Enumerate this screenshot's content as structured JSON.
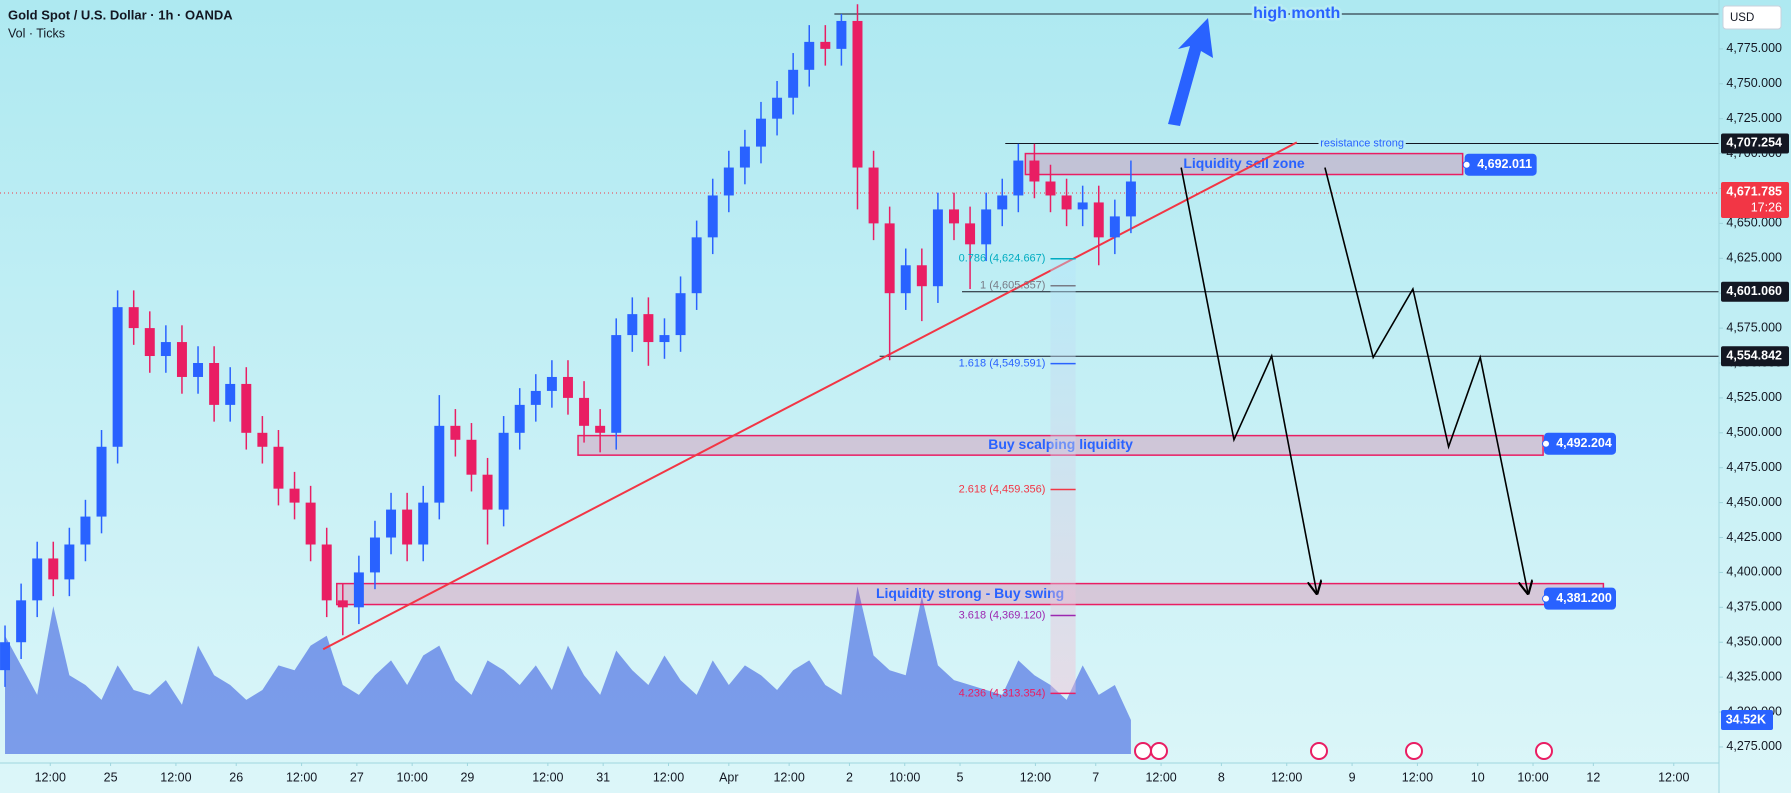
{
  "chart_data": {
    "type": "candlestick",
    "title": "Gold Spot / U.S. Dollar · 1h · OANDA",
    "subtitle": "Vol · Ticks",
    "currency": "USD",
    "up_color": "#2962ff",
    "down_color": "#e91e63",
    "x": [
      1,
      4.2,
      7.4,
      10.6,
      13.8,
      17,
      20.2,
      23.4,
      26.6,
      29.8,
      33,
      36.2,
      39.4,
      42.6,
      45.8,
      49,
      52.2,
      55.4,
      58.6,
      61.8,
      65,
      68.2,
      71.4,
      74.6,
      77.8,
      81,
      84.2,
      87.4,
      90.6,
      93.8,
      97,
      100.2,
      103.4,
      106.6,
      109.8,
      113,
      116.2,
      119.4,
      122.6,
      125.8,
      129,
      132.2,
      135.4,
      138.6,
      141.8,
      145,
      148.2,
      151.4,
      154.6,
      157.8,
      161,
      164.2,
      167.4,
      170.6,
      173.8,
      177,
      180.2,
      183.4,
      186.6,
      189.8,
      193,
      196.2,
      199.4,
      202.6,
      205.8,
      209,
      212.2,
      215.4,
      218.6,
      221.8,
      225
    ],
    "open": [
      4330,
      4350,
      4380,
      4410,
      4395,
      4420,
      4440,
      4490,
      4590,
      4575,
      4555,
      4565,
      4540,
      4550,
      4520,
      4535,
      4500,
      4490,
      4460,
      4450,
      4420,
      4380,
      4375,
      4400,
      4425,
      4445,
      4420,
      4450,
      4505,
      4495,
      4470,
      4445,
      4500,
      4520,
      4530,
      4540,
      4525,
      4505,
      4500,
      4570,
      4585,
      4565,
      4570,
      4600,
      4640,
      4670,
      4690,
      4705,
      4725,
      4740,
      4760,
      4780,
      4775,
      4795,
      4690,
      4650,
      4600,
      4620,
      4605,
      4660,
      4650,
      4635,
      4660,
      4670,
      4695,
      4680,
      4670,
      4660,
      4665,
      4640,
      4655
    ],
    "high": [
      4362,
      4392,
      4422,
      4422,
      4432,
      4452,
      4502,
      4602,
      4602,
      4587,
      4577,
      4577,
      4562,
      4562,
      4547,
      4547,
      4512,
      4502,
      4472,
      4462,
      4432,
      4392,
      4412,
      4437,
      4457,
      4457,
      4462,
      4527,
      4517,
      4507,
      4482,
      4512,
      4532,
      4542,
      4552,
      4552,
      4537,
      4517,
      4582,
      4597,
      4597,
      4582,
      4612,
      4652,
      4682,
      4702,
      4717,
      4737,
      4752,
      4772,
      4792,
      4792,
      4800,
      4807,
      4702,
      4662,
      4632,
      4632,
      4672,
      4672,
      4662,
      4672,
      4682,
      4707,
      4707,
      4692,
      4682,
      4677,
      4677,
      4667,
      4695
    ],
    "low": [
      4318,
      4338,
      4368,
      4383,
      4383,
      4408,
      4428,
      4478,
      4563,
      4543,
      4543,
      4528,
      4528,
      4508,
      4508,
      4488,
      4478,
      4448,
      4438,
      4408,
      4368,
      4355,
      4363,
      4388,
      4413,
      4408,
      4408,
      4438,
      4483,
      4458,
      4420,
      4433,
      4488,
      4508,
      4518,
      4513,
      4493,
      4486,
      4488,
      4558,
      4548,
      4553,
      4558,
      4588,
      4628,
      4658,
      4678,
      4693,
      4713,
      4728,
      4748,
      4763,
      4763,
      4660,
      4638,
      4552,
      4588,
      4580,
      4593,
      4638,
      4603,
      4623,
      4648,
      4658,
      4668,
      4658,
      4648,
      4648,
      4620,
      4628,
      4643
    ],
    "close": [
      4350,
      4380,
      4410,
      4395,
      4420,
      4440,
      4490,
      4590,
      4575,
      4555,
      4565,
      4540,
      4550,
      4520,
      4535,
      4500,
      4490,
      4460,
      4450,
      4420,
      4380,
      4375,
      4400,
      4425,
      4445,
      4420,
      4450,
      4505,
      4495,
      4470,
      4445,
      4500,
      4520,
      4530,
      4540,
      4525,
      4505,
      4500,
      4570,
      4585,
      4565,
      4570,
      4600,
      4640,
      4670,
      4690,
      4705,
      4725,
      4740,
      4760,
      4780,
      4775,
      4795,
      4690,
      4650,
      4600,
      4620,
      4605,
      4660,
      4650,
      4635,
      4660,
      4670,
      4695,
      4680,
      4670,
      4660,
      4665,
      4640,
      4655,
      4680
    ],
    "volume_values": [
      120,
      90,
      60,
      150,
      80,
      70,
      55,
      90,
      65,
      60,
      75,
      50,
      110,
      80,
      70,
      55,
      65,
      90,
      85,
      110,
      120,
      70,
      60,
      80,
      95,
      70,
      100,
      110,
      75,
      60,
      95,
      85,
      70,
      90,
      65,
      110,
      80,
      60,
      105,
      85,
      70,
      100,
      75,
      60,
      95,
      70,
      90,
      80,
      65,
      85,
      95,
      70,
      60,
      170,
      100,
      85,
      80,
      160,
      90,
      75,
      70,
      65,
      60,
      95,
      80,
      70,
      55,
      90,
      60,
      70,
      34.52
    ],
    "volume_label": "34.52K",
    "volume_color": "#5b7ee5",
    "volume_lim": [
      0,
      200
    ],
    "xlim": [
      0,
      342
    ],
    "xticks": [
      {
        "value": 10,
        "label": "12:00"
      },
      {
        "value": 22,
        "label": "25"
      },
      {
        "value": 35,
        "label": "12:00"
      },
      {
        "value": 47,
        "label": "26"
      },
      {
        "value": 60,
        "label": "12:00"
      },
      {
        "value": 71,
        "label": "27"
      },
      {
        "value": 82,
        "label": "10:00"
      },
      {
        "value": 93,
        "label": "29"
      },
      {
        "value": 109,
        "label": "12:00"
      },
      {
        "value": 120,
        "label": "31"
      },
      {
        "value": 133,
        "label": "12:00"
      },
      {
        "value": 145,
        "label": "Apr"
      },
      {
        "value": 157,
        "label": "12:00"
      },
      {
        "value": 169,
        "label": "2"
      },
      {
        "value": 180,
        "label": "10:00"
      },
      {
        "value": 191,
        "label": "5"
      },
      {
        "value": 206,
        "label": "12:00"
      },
      {
        "value": 218,
        "label": "7"
      },
      {
        "value": 231,
        "label": "12:00"
      },
      {
        "value": 243,
        "label": "8"
      },
      {
        "value": 256,
        "label": "12:00"
      },
      {
        "value": 269,
        "label": "9"
      },
      {
        "value": 282,
        "label": "12:00"
      },
      {
        "value": 294,
        "label": "10"
      },
      {
        "value": 305,
        "label": "10:00"
      },
      {
        "value": 317,
        "label": "12"
      },
      {
        "value": 333,
        "label": "12:00"
      }
    ],
    "ylim": [
      4263.5,
      4810
    ],
    "yticks": [
      {
        "value": 4275,
        "label": "4,275.000"
      },
      {
        "value": 4300,
        "label": "4,300.000"
      },
      {
        "value": 4325,
        "label": "4,325.000"
      },
      {
        "value": 4350,
        "label": "4,350.000"
      },
      {
        "value": 4375,
        "label": "4,375.000"
      },
      {
        "value": 4400,
        "label": "4,400.000"
      },
      {
        "value": 4425,
        "label": "4,425.000"
      },
      {
        "value": 4450,
        "label": "4,450.000"
      },
      {
        "value": 4475,
        "label": "4,475.000"
      },
      {
        "value": 4500,
        "label": "4,500.000"
      },
      {
        "value": 4525,
        "label": "4,525.000"
      },
      {
        "value": 4550,
        "label": "4,550.000"
      },
      {
        "value": 4575,
        "label": "4,575.000"
      },
      {
        "value": 4600,
        "label": "4,600.000"
      },
      {
        "value": 4625,
        "label": "4,625.000"
      },
      {
        "value": 4650,
        "label": "4,650.000"
      },
      {
        "value": 4675,
        "label": "4,675.000"
      },
      {
        "value": 4700,
        "label": "4,700.000"
      },
      {
        "value": 4725,
        "label": "4,725.000"
      },
      {
        "value": 4750,
        "label": "4,750.000"
      },
      {
        "value": 4775,
        "label": "4,775.000"
      }
    ],
    "current_price": {
      "value": 4671.785,
      "label": "4,671.785",
      "countdown": "17:26",
      "color": "#f23645"
    },
    "high_month": {
      "label": "high month",
      "value": 4800,
      "x0": 166
    },
    "levels": [
      {
        "value": 4707.254,
        "label": "4,707.254",
        "x0": 200,
        "note": "resistance strong"
      },
      {
        "value": 4601.06,
        "label": "4,601.060",
        "x0": 191.4
      },
      {
        "value": 4554.842,
        "label": "4,554.842",
        "x0": 175
      }
    ],
    "zones": [
      {
        "label": "Liquidity sell zone",
        "low": 4685,
        "high": 4700,
        "x0": 204,
        "x1": 291,
        "price": {
          "value": 4692.011,
          "label": "4,692.011"
        }
      },
      {
        "label": "Buy scalping liquidity",
        "low": 4484,
        "high": 4498,
        "x0": 115,
        "x1": 307,
        "price": {
          "value": 4492.204,
          "label": "4,492.204"
        }
      },
      {
        "label": "Liquidity strong - Buy swing",
        "low": 4377,
        "high": 4392,
        "x0": 67,
        "x1": 319,
        "price": {
          "value": 4381.2,
          "label": "4,381.200"
        }
      }
    ],
    "fib": [
      {
        "value": 4624.667,
        "label": "0.786 (4,624.667)",
        "color": "#00acc1"
      },
      {
        "value": 4605.357,
        "label": "1 (4,605.357)",
        "color": "#787b86"
      },
      {
        "value": 4549.591,
        "label": "1.618 (4,549.591)",
        "color": "#2962ff"
      },
      {
        "value": 4459.356,
        "label": "2.618 (4,459.356)",
        "color": "#f23645"
      },
      {
        "value": 4369.12,
        "label": "3.618 (4,369.120)",
        "color": "#9c27b0"
      },
      {
        "value": 4313.354,
        "label": "4.236 (4,313.354)",
        "color": "#e91e63"
      }
    ],
    "trendline": {
      "points": [
        [
          64.3,
          4345
        ],
        [
          258,
          4708
        ]
      ],
      "color": "#f23645"
    },
    "paths": [
      [
        [
          235,
          4690
        ],
        [
          245.5,
          4495
        ],
        [
          253,
          4555
        ],
        [
          262,
          4385
        ]
      ],
      [
        [
          263.6,
          4690
        ],
        [
          273.2,
          4554
        ],
        [
          281.1,
          4603
        ],
        [
          288.2,
          4490
        ],
        [
          294.5,
          4554
        ],
        [
          304,
          4385
        ]
      ]
    ]
  }
}
